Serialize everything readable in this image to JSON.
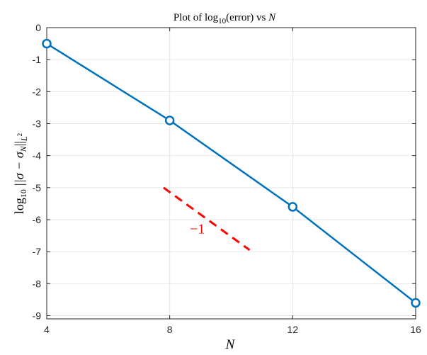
{
  "chart_data": {
    "type": "line",
    "title": "Plot of log10(error) vs N",
    "title_parts": {
      "pre": "Plot of log",
      "sub": "10",
      "post": "(error) vs ",
      "var": "N"
    },
    "xlabel": "N",
    "ylabel": "log10 ||σ − σN||L2",
    "ylabel_parts": {
      "log": "log",
      "log_sub": "10",
      "norm_open": "||σ − σ",
      "sigma_sub": "N",
      "norm_close": "||",
      "space_sub": "L",
      "space_sup": "2"
    },
    "xlim": [
      4,
      16
    ],
    "ylim": [
      -9.1,
      0
    ],
    "x_ticks": [
      4,
      8,
      12,
      16
    ],
    "y_ticks": [
      0,
      -1,
      -2,
      -3,
      -4,
      -5,
      -6,
      -7,
      -8,
      -9
    ],
    "grid": true,
    "series": [
      {
        "x": [
          4,
          8,
          12,
          16
        ],
        "y": [
          -0.5,
          -2.9,
          -5.6,
          -8.6
        ],
        "color": "#0072BD",
        "marker": "circle"
      }
    ],
    "reference_line": {
      "x": [
        7.8,
        10.6
      ],
      "y": [
        -5.0,
        -6.95
      ],
      "color": "#FF0000",
      "style": "dashed",
      "label": "−1",
      "label_at": [
        8.9,
        -6.3
      ]
    }
  }
}
